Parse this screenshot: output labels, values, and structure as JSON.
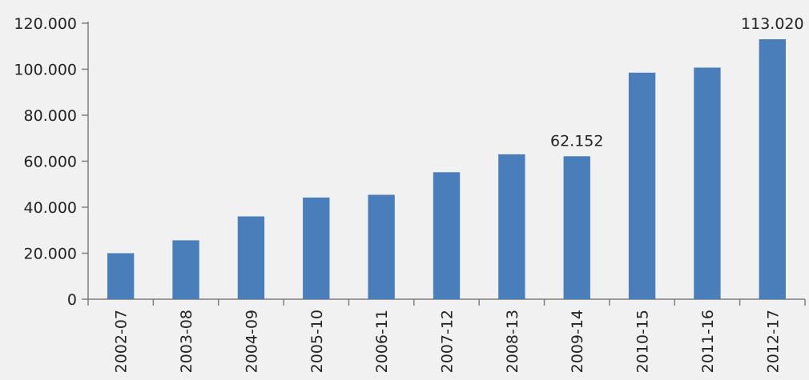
{
  "chart_data": {
    "type": "bar",
    "title": "",
    "xlabel": "",
    "ylabel": "",
    "categories": [
      "2002-07",
      "2003-08",
      "2004-09",
      "2005-10",
      "2006-11",
      "2007-12",
      "2008-13",
      "2009-14",
      "2010-15",
      "2011-16",
      "2012-17"
    ],
    "values": [
      20000,
      25600,
      36000,
      44200,
      45400,
      55200,
      63000,
      62152,
      98500,
      100700,
      113020
    ],
    "data_labels": [
      {
        "category": "2009-14",
        "text": "62.152"
      },
      {
        "category": "2012-17",
        "text": "113.020"
      }
    ],
    "ylim": [
      0,
      120000
    ],
    "yticks": [
      0,
      20000,
      40000,
      60000,
      80000,
      100000,
      120000
    ],
    "ytick_labels": [
      "0",
      "20.000",
      "40.000",
      "60.000",
      "80.000",
      "100.000",
      "120.000"
    ],
    "grid": false,
    "legend": "none",
    "bar_color": "#4a7ebb",
    "axis_color": "#7f7f7f",
    "background": "#f1f1f1"
  }
}
